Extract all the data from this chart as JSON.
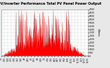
{
  "title": "Solar PV/Inverter Performance Total PV Panel Power Output",
  "title_fontsize": 3.5,
  "background_color": "#e8e8e8",
  "plot_bg_color": "#ffffff",
  "grid_color": "#aaaaaa",
  "fill_color": "#ff0000",
  "line_color": "#cc0000",
  "y_max": 7000,
  "y_ticks": [
    0,
    500,
    1000,
    1500,
    2000,
    2500,
    3000,
    3500,
    4000,
    4500,
    5000,
    5500,
    6000,
    6500,
    7000
  ],
  "num_points": 365,
  "ylabel": "Watts",
  "ylabel_fontsize": 3.0,
  "tick_fontsize": 2.2,
  "x_tick_fontsize": 2.0
}
